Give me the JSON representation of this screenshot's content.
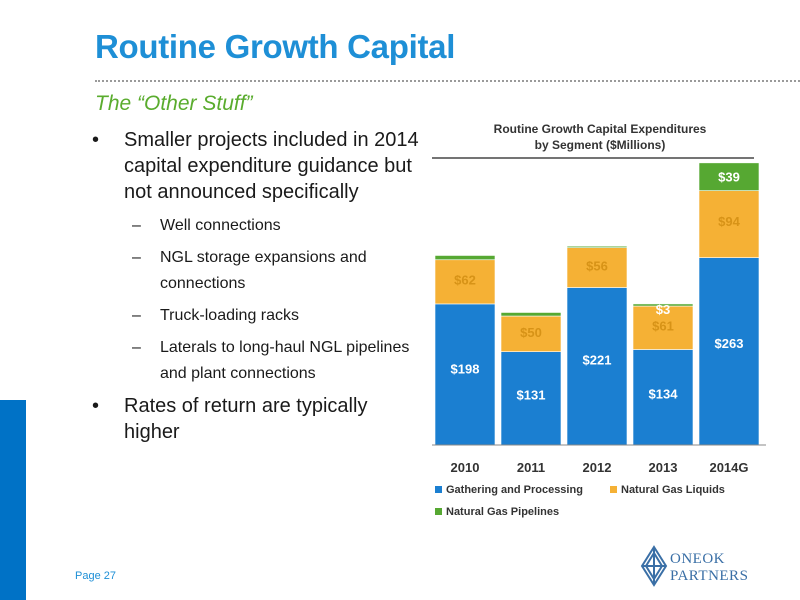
{
  "slide": {
    "title": "Routine Growth Capital",
    "subtitle": "The “Other Stuff”",
    "page_label": "Page 27"
  },
  "bullets": [
    {
      "text": "Smaller projects included in 2014 capital expenditure guidance but not announced specifically",
      "subs": [
        "Well connections",
        "NGL storage expansions and connections",
        "Truck-loading racks",
        "Laterals to long-haul NGL pipelines and plant connections"
      ]
    },
    {
      "text": "Rates of return are typically higher",
      "subs": []
    }
  ],
  "bullet_marker": "•",
  "sub_marker": "–",
  "logo": {
    "line1": "ONEOK",
    "line2": "PARTNERS",
    "icon": "oneok-partners-logo-icon"
  },
  "colors": {
    "title": "#1e8fd6",
    "subtitle": "#5aac2e",
    "accent_bar": "#0072c6"
  },
  "chart_data": {
    "type": "bar",
    "stacked": true,
    "title": "Routine Growth Capital Expenditures",
    "subtitle": "by Segment ($Millions)",
    "categories": [
      "2010",
      "2011",
      "2012",
      "2013",
      "2014G"
    ],
    "series": [
      {
        "name": "Gathering and Processing",
        "color": "#1b7fd1",
        "values": [
          198,
          131,
          221,
          134,
          263
        ],
        "labels": [
          "$198",
          "$131",
          "$221",
          "$134",
          "$263"
        ]
      },
      {
        "name": "Natural Gas Liquids",
        "color": "#f5b135",
        "values": [
          62,
          50,
          56,
          61,
          94
        ],
        "labels": [
          "$62",
          "$50",
          "$56",
          "$61",
          "$94"
        ]
      },
      {
        "name": "Natural Gas Pipelines",
        "color": "#56a832",
        "values": [
          6,
          5,
          2,
          3,
          39
        ],
        "labels": [
          "",
          "",
          "",
          "$3",
          "$39"
        ]
      }
    ],
    "ylim": [
      0,
      400
    ],
    "grid": false,
    "legend_position": "bottom"
  }
}
